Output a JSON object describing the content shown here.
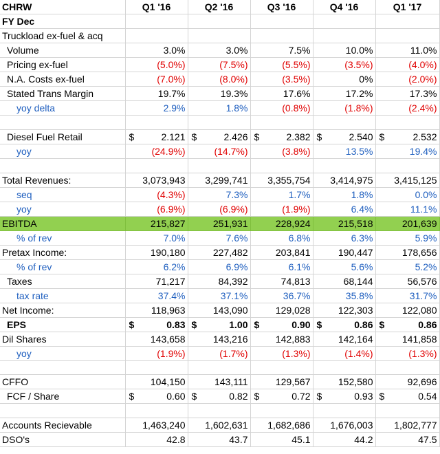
{
  "headers": [
    "CHRW",
    "Q1 '16",
    "Q2 '16",
    "Q3 '16",
    "Q4 '16",
    "Q1 '17"
  ],
  "rows": [
    {
      "label": "FY Dec",
      "style": "bold",
      "indent": 0,
      "cells": [
        "",
        "",
        "",
        "",
        ""
      ]
    },
    {
      "label": "Truckload ex-fuel & acq",
      "style": "normal",
      "indent": 0,
      "cells": [
        "",
        "",
        "",
        "",
        ""
      ]
    },
    {
      "label": "Volume",
      "style": "normal",
      "indent": 1,
      "cells": [
        "3.0%",
        "3.0%",
        "7.5%",
        "10.0%",
        "11.0%"
      ]
    },
    {
      "label": "Pricing ex-fuel",
      "style": "normal",
      "indent": 1,
      "cells": [
        "(5.0%)",
        "(7.5%)",
        "(5.5%)",
        "(3.5%)",
        "(4.0%)"
      ]
    },
    {
      "label": "N.A. Costs ex-fuel",
      "style": "normal",
      "indent": 1,
      "cells": [
        "(7.0%)",
        "(8.0%)",
        "(3.5%)",
        "0%",
        "(2.0%)"
      ]
    },
    {
      "label": "Stated Trans Margin",
      "style": "normal",
      "indent": 1,
      "cells": [
        "19.7%",
        "19.3%",
        "17.6%",
        "17.2%",
        "17.3%"
      ]
    },
    {
      "label": "yoy delta",
      "style": "blue",
      "indent": 2,
      "cells": [
        "2.9%",
        "1.8%",
        "(0.8%)",
        "(1.8%)",
        "(2.4%)"
      ]
    },
    {
      "label": "",
      "style": "normal",
      "indent": 0,
      "cells": [
        "",
        "",
        "",
        "",
        ""
      ]
    },
    {
      "label": "Diesel Fuel Retail",
      "style": "normal",
      "indent": 1,
      "currency": "$",
      "cells": [
        "2.121",
        "2.426",
        "2.382",
        "2.540",
        "2.532"
      ]
    },
    {
      "label": "yoy",
      "style": "blue",
      "indent": 2,
      "cells": [
        "(24.9%)",
        "(14.7%)",
        "(3.8%)",
        "13.5%",
        "19.4%"
      ]
    },
    {
      "label": "",
      "style": "normal",
      "indent": 0,
      "cells": [
        "",
        "",
        "",
        "",
        ""
      ]
    },
    {
      "label": "Total Revenues:",
      "style": "normal",
      "indent": 0,
      "cells": [
        "3,073,943",
        "3,299,741",
        "3,355,754",
        "3,414,975",
        "3,415,125"
      ]
    },
    {
      "label": "seq",
      "style": "blue",
      "indent": 2,
      "cells": [
        "(4.3%)",
        "7.3%",
        "1.7%",
        "1.8%",
        "0.0%"
      ]
    },
    {
      "label": "yoy",
      "style": "blue",
      "indent": 2,
      "cells": [
        "(6.9%)",
        "(6.9%)",
        "(1.9%)",
        "6.4%",
        "11.1%"
      ]
    },
    {
      "label": "EBITDA",
      "style": "green",
      "indent": 0,
      "cells": [
        "215,827",
        "251,931",
        "228,924",
        "215,518",
        "201,639"
      ]
    },
    {
      "label": "% of rev",
      "style": "blue",
      "indent": 2,
      "cells": [
        "7.0%",
        "7.6%",
        "6.8%",
        "6.3%",
        "5.9%"
      ]
    },
    {
      "label": "Pretax Income:",
      "style": "normal",
      "indent": 0,
      "cells": [
        "190,180",
        "227,482",
        "203,841",
        "190,447",
        "178,656"
      ]
    },
    {
      "label": "% of rev",
      "style": "blue",
      "indent": 2,
      "cells": [
        "6.2%",
        "6.9%",
        "6.1%",
        "5.6%",
        "5.2%"
      ]
    },
    {
      "label": "Taxes",
      "style": "normal",
      "indent": 1,
      "cells": [
        "71,217",
        "84,392",
        "74,813",
        "68,144",
        "56,576"
      ]
    },
    {
      "label": "tax rate",
      "style": "blue",
      "indent": 2,
      "cells": [
        "37.4%",
        "37.1%",
        "36.7%",
        "35.8%",
        "31.7%"
      ]
    },
    {
      "label": "Net Income:",
      "style": "normal",
      "indent": 0,
      "cells": [
        "118,963",
        "143,090",
        "129,028",
        "122,303",
        "122,080"
      ]
    },
    {
      "label": "EPS",
      "style": "bold",
      "indent": 1,
      "currency": "$",
      "cells": [
        "0.83",
        "1.00",
        "0.90",
        "0.86",
        "0.86"
      ]
    },
    {
      "label": "Dil Shares",
      "style": "normal",
      "indent": 0,
      "cells": [
        "143,658",
        "143,216",
        "142,883",
        "142,164",
        "141,858"
      ]
    },
    {
      "label": "yoy",
      "style": "blue",
      "indent": 2,
      "cells": [
        "(1.9%)",
        "(1.7%)",
        "(1.3%)",
        "(1.4%)",
        "(1.3%)"
      ]
    },
    {
      "label": "",
      "style": "normal",
      "indent": 0,
      "cells": [
        "",
        "",
        "",
        "",
        ""
      ]
    },
    {
      "label": "CFFO",
      "style": "normal",
      "indent": 0,
      "cells": [
        "104,150",
        "143,111",
        "129,567",
        "152,580",
        "92,696"
      ]
    },
    {
      "label": "FCF / Share",
      "style": "normal",
      "indent": 1,
      "currency": "$",
      "cells": [
        "0.60",
        "0.82",
        "0.72",
        "0.93",
        "0.54"
      ]
    },
    {
      "label": "",
      "style": "normal",
      "indent": 0,
      "cells": [
        "",
        "",
        "",
        "",
        ""
      ]
    },
    {
      "label": "Accounts Recievable",
      "style": "normal",
      "indent": 0,
      "cells": [
        "1,463,240",
        "1,602,631",
        "1,682,686",
        "1,676,003",
        "1,802,777"
      ]
    },
    {
      "label": "DSO's",
      "style": "normal",
      "indent": 0,
      "cells": [
        "42.8",
        "43.7",
        "45.1",
        "44.2",
        "47.5"
      ]
    }
  ],
  "colors": {
    "blue": "#1f5fbf",
    "red": "#e00000",
    "ebitda_highlight": "#92d050",
    "gridline": "#d4d4d4"
  }
}
